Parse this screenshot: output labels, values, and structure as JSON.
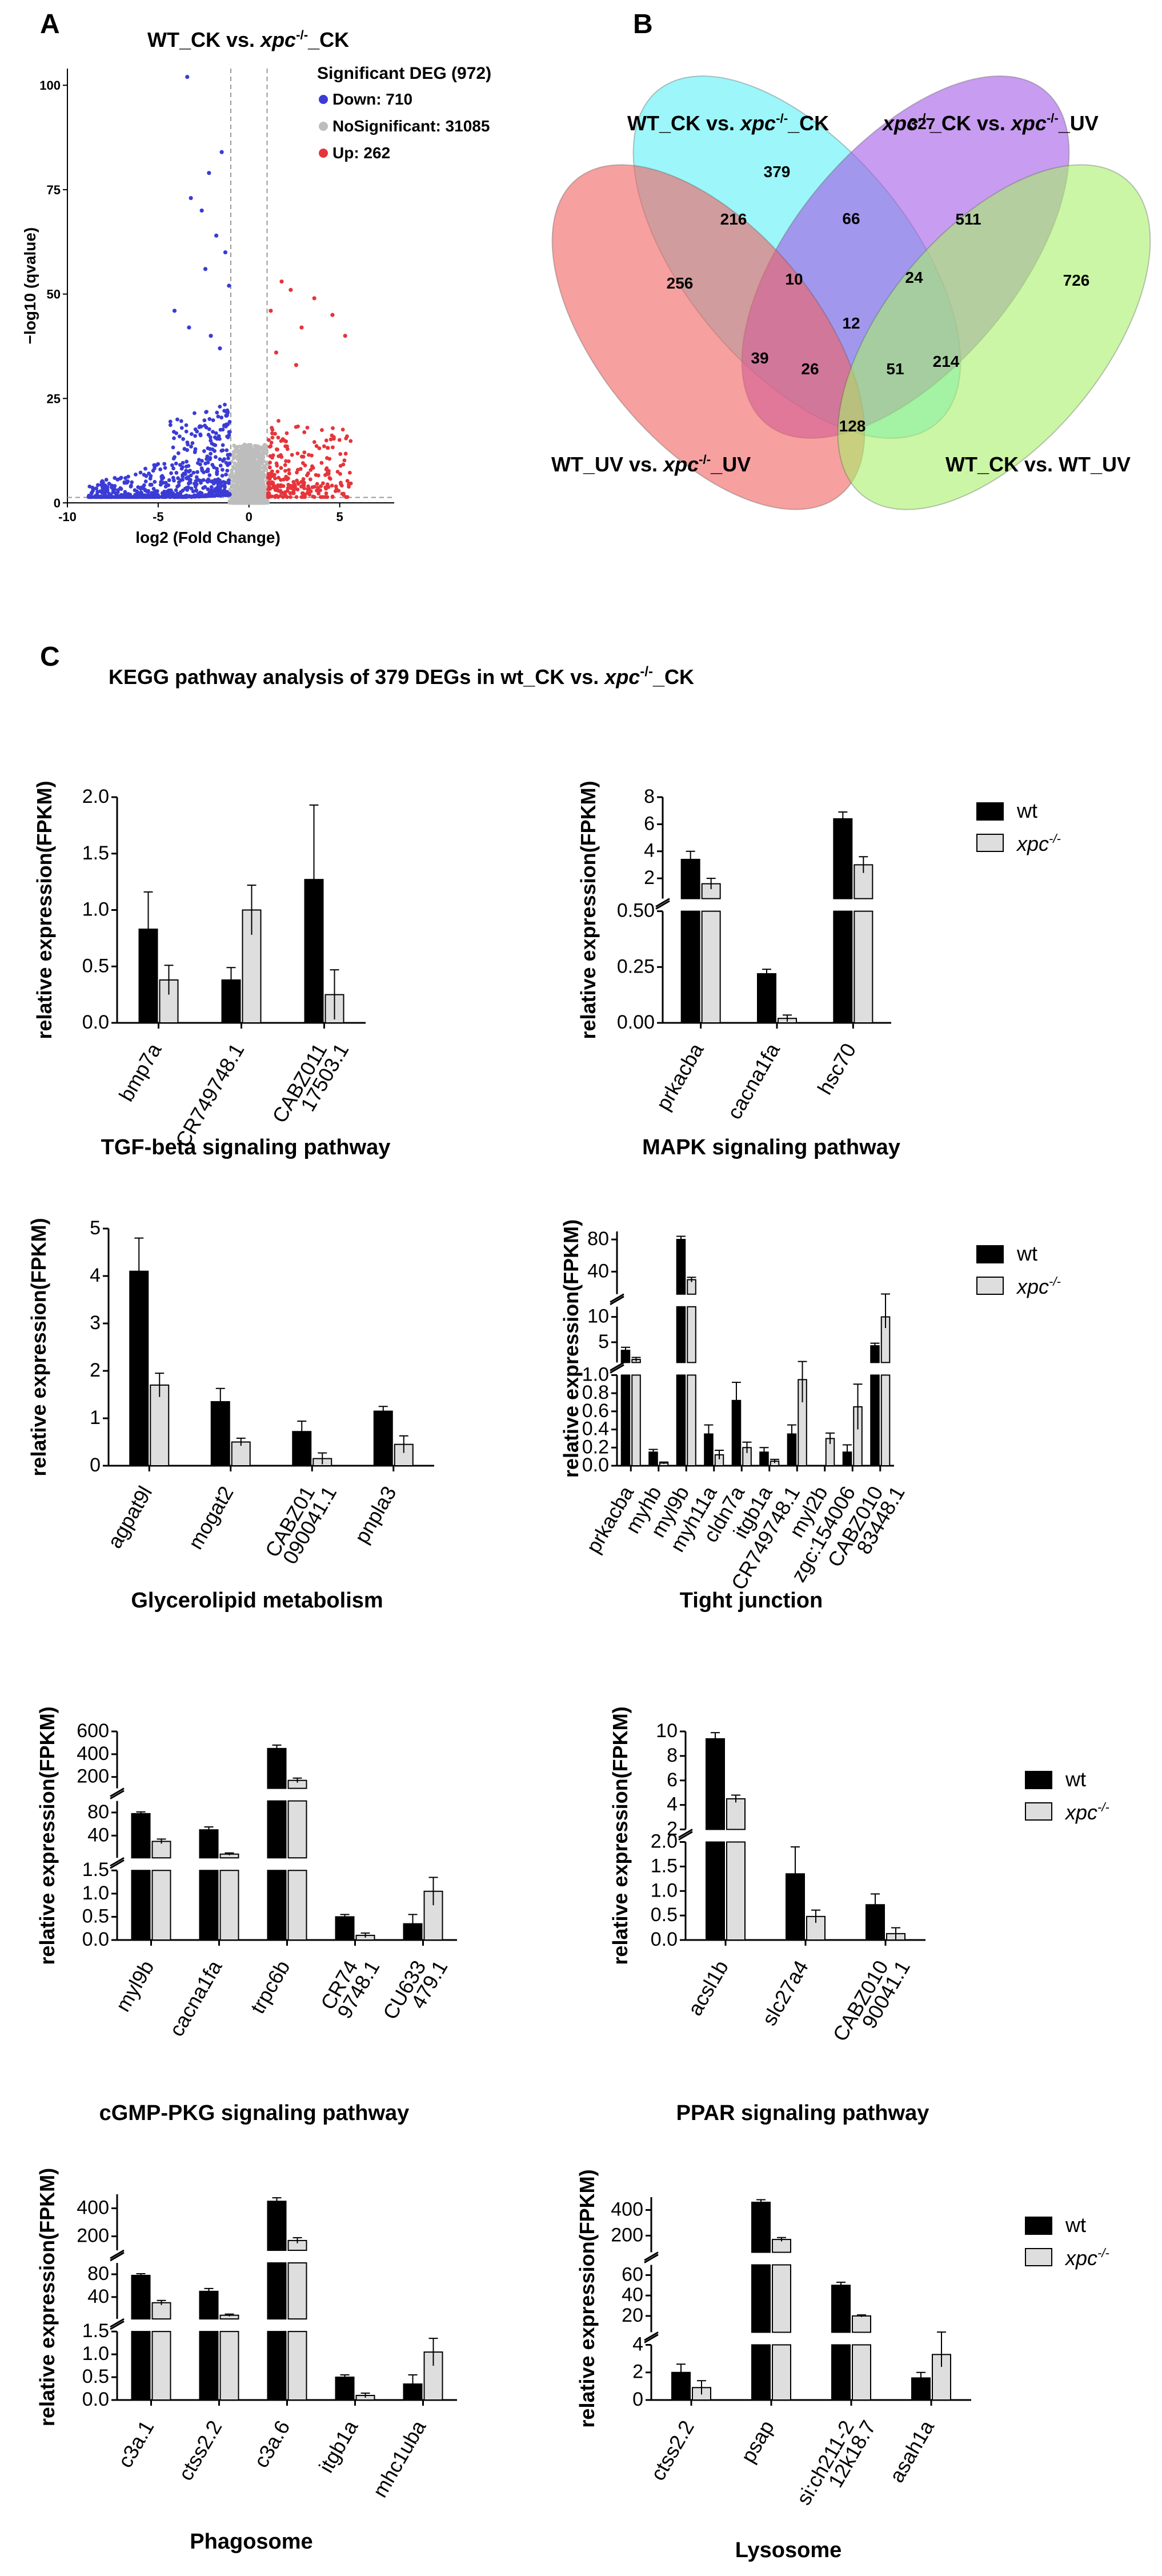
{
  "labels": {
    "a": "A",
    "b": "B",
    "c": "C"
  },
  "legend": {
    "wt": "wt",
    "xpc_base": "xpc",
    "xpc_sup": "-/-"
  },
  "title_c": {
    "pre": "KEGG pathway  analysis of 379 DEGs in wt_CK vs. ",
    "xpc": "xpc",
    "sup": "-/-",
    "post": "_CK"
  },
  "volcano_title": {
    "pre": "WT_CK vs. ",
    "xpc": "xpc",
    "sup": "-/-",
    "post": "_CK"
  },
  "venn_labels": {
    "s1": {
      "pre": "WT_CK vs. ",
      "xpc": "xpc",
      "sup": "-/-",
      "post": "_CK"
    },
    "s2": {
      "xpc1": "xpc",
      "sup1": "-/-",
      "mid": "_CK vs. ",
      "xpc2": "xpc",
      "sup2": "-/-",
      "post": "_UV"
    },
    "s3": {
      "pre": "WT_UV vs. ",
      "xpc": "xpc",
      "sup": "-/-",
      "post": "_UV"
    },
    "s4": {
      "text": "WT_CK vs. WT_UV"
    }
  },
  "colors": {
    "down": "#3b3bd6",
    "nosig": "#bdbdbd",
    "up": "#e6353a",
    "wt_bar": "#000000",
    "xpc_bar": "#dedede",
    "venn1": "#5cf0f5",
    "venn2": "#a35ae6",
    "venn3": "#f26161",
    "venn4": "#a8f06b"
  },
  "chart_data": [
    {
      "id": "volcano",
      "type": "scatter",
      "title": "WT_CK vs. xpc-/-_CK",
      "xlabel": "log2 (Fold Change)",
      "ylabel": "−log10 (qvalue)",
      "xlim": [
        -10,
        8
      ],
      "ylim": [
        0,
        104
      ],
      "x_ticks": [
        -10,
        -5,
        0,
        5
      ],
      "y_ticks": [
        0,
        25,
        50,
        75,
        100
      ],
      "thresholds": {
        "log2fc": [
          -1,
          1
        ],
        "neglog10q": 1.3
      },
      "legend": {
        "title": "Significant DEG (972)",
        "items": [
          {
            "label": "Down: 710",
            "key": "down"
          },
          {
            "label": "NoSignificant: 31085",
            "key": "nosig"
          },
          {
            "label": "Up: 262",
            "key": "up"
          }
        ]
      },
      "highlight_points": [
        [
          -3.4,
          102
        ],
        [
          -1.5,
          84
        ],
        [
          -2.2,
          79
        ],
        [
          -3.2,
          73
        ],
        [
          -2.6,
          70
        ],
        [
          -1.8,
          64
        ],
        [
          -1.3,
          60
        ],
        [
          -2.4,
          56
        ],
        [
          -1.1,
          52
        ],
        [
          1.8,
          53
        ],
        [
          2.3,
          51
        ],
        [
          3.6,
          49
        ],
        [
          4.6,
          45
        ],
        [
          1.2,
          46
        ],
        [
          2.9,
          42
        ],
        [
          5.3,
          40
        ],
        [
          -4.1,
          46
        ],
        [
          -3.3,
          42
        ],
        [
          -2.1,
          40
        ],
        [
          -1.6,
          37
        ],
        [
          1.5,
          36
        ],
        [
          2.6,
          33
        ]
      ]
    },
    {
      "id": "venn",
      "type": "venn",
      "sets": [
        "WT_CK vs. xpc-/-_CK",
        "xpc-/-_CK vs. xpc-/-_UV",
        "WT_UV vs. xpc-/-_UV",
        "WT_CK vs. WT_UV"
      ],
      "regions": [
        {
          "value": "379",
          "highlight": true
        },
        {
          "value": "327"
        },
        {
          "value": "256"
        },
        {
          "value": "726"
        },
        {
          "value": "216"
        },
        {
          "value": "66"
        },
        {
          "value": "511"
        },
        {
          "value": "10"
        },
        {
          "value": "24"
        },
        {
          "value": "12"
        },
        {
          "value": "39"
        },
        {
          "value": "26"
        },
        {
          "value": "51"
        },
        {
          "value": "214"
        },
        {
          "value": "128"
        }
      ]
    },
    {
      "id": "tgf",
      "type": "bar",
      "title": "TGF-beta signaling pathway",
      "ylabel": "relative expression(FPKM)",
      "categories": [
        [
          "bmp7a"
        ],
        [
          "CR749748.1"
        ],
        [
          "CABZ011",
          "17503.1"
        ]
      ],
      "series": [
        {
          "name": "wt",
          "values": [
            0.83,
            0.38,
            1.27
          ],
          "errors": [
            0.33,
            0.11,
            0.66
          ]
        },
        {
          "name": "xpc-/-",
          "values": [
            0.38,
            1.0,
            0.25
          ],
          "errors": [
            0.13,
            0.22,
            0.22
          ]
        }
      ],
      "segments": [
        {
          "min": 0,
          "max": 2.0,
          "ticks": [
            "0.0",
            "0.5",
            "1.0",
            "1.5",
            "2.0"
          ]
        }
      ]
    },
    {
      "id": "mapk",
      "type": "bar",
      "title": "MAPK signaling pathway",
      "ylabel": "relative expression(FPKM)",
      "categories": [
        [
          "prkacba"
        ],
        [
          "cacna1fa"
        ],
        [
          "hsc70"
        ]
      ],
      "series": [
        {
          "name": "wt",
          "values": [
            3.4,
            0.22,
            6.4
          ],
          "errors": [
            0.6,
            0.02,
            0.5
          ]
        },
        {
          "name": "xpc-/-",
          "values": [
            1.6,
            0.02,
            3.0
          ],
          "errors": [
            0.4,
            0.015,
            0.6
          ]
        }
      ],
      "segments": [
        {
          "min": 0,
          "max": 0.5,
          "ticks": [
            "0.00",
            "0.25",
            "0.50"
          ]
        },
        {
          "min": 0.5,
          "max": 8,
          "ticks": [
            "2",
            "4",
            "6",
            "8"
          ]
        }
      ]
    },
    {
      "id": "glycero",
      "type": "bar",
      "title": "Glycerolipid metabolism",
      "ylabel": "relative expression(FPKM)",
      "categories": [
        [
          "agpat9l"
        ],
        [
          "mogat2"
        ],
        [
          "CABZ01",
          "090041.1"
        ],
        [
          "pnpla3"
        ]
      ],
      "series": [
        {
          "name": "wt",
          "values": [
            4.1,
            1.35,
            0.72,
            1.15
          ],
          "errors": [
            0.7,
            0.28,
            0.22,
            0.1
          ]
        },
        {
          "name": "xpc-/-",
          "values": [
            1.7,
            0.5,
            0.15,
            0.45
          ],
          "errors": [
            0.25,
            0.08,
            0.12,
            0.18
          ]
        }
      ],
      "segments": [
        {
          "min": 0,
          "max": 5,
          "ticks": [
            "0",
            "1",
            "2",
            "3",
            "4",
            "5"
          ]
        }
      ]
    },
    {
      "id": "tight",
      "type": "bar",
      "title": "Tight junction",
      "ylabel": "relative expression(FPKM)",
      "categories": [
        [
          "prkacba"
        ],
        [
          "myhb"
        ],
        [
          "myl9b"
        ],
        [
          "myh11a"
        ],
        [
          "cldn7a"
        ],
        [
          "itgb1a"
        ],
        [
          "CR749748.1"
        ],
        [
          "myl2b"
        ],
        [
          "zgc:154006"
        ],
        [
          "CABZ010",
          "83448.1"
        ]
      ],
      "series": [
        {
          "name": "wt",
          "values": [
            3.4,
            0.15,
            80,
            0.35,
            0.72,
            0.15,
            0.35,
            0.0,
            0.15,
            4.3
          ],
          "errors": [
            0.6,
            0.03,
            4,
            0.1,
            0.2,
            0.05,
            0.1,
            0,
            0.08,
            0.5
          ]
        },
        {
          "name": "xpc-/-",
          "values": [
            1.6,
            0.03,
            30,
            0.12,
            0.2,
            0.05,
            0.95,
            0.3,
            0.65,
            10
          ],
          "errors": [
            0.4,
            0.01,
            3,
            0.05,
            0.06,
            0.02,
            0.25,
            0.06,
            0.25,
            2.2
          ]
        }
      ],
      "segments": [
        {
          "min": 0,
          "max": 1.0,
          "ticks": [
            "0.0",
            "0.2",
            "0.4",
            "0.6",
            "0.8",
            "1.0"
          ]
        },
        {
          "min": 1.0,
          "max": 12,
          "ticks": [
            "5",
            "10"
          ]
        },
        {
          "min": 12,
          "max": 90,
          "ticks": [
            "40",
            "80"
          ]
        }
      ]
    },
    {
      "id": "cgmp",
      "type": "bar",
      "title": "cGMP-PKG signaling pathway",
      "ylabel": "relative expression(FPKM)",
      "categories": [
        [
          "myl9b"
        ],
        [
          "cacna1fa"
        ],
        [
          "trpc6b"
        ],
        [
          "CR74",
          "9748.1"
        ],
        [
          "CU633",
          "479.1"
        ]
      ],
      "series": [
        {
          "name": "wt",
          "values": [
            78,
            50,
            450,
            0.5,
            0.35
          ],
          "errors": [
            3,
            5,
            30,
            0.05,
            0.2
          ]
        },
        {
          "name": "xpc-/-",
          "values": [
            30,
            8,
            170,
            0.1,
            1.05
          ],
          "errors": [
            4,
            2,
            20,
            0.05,
            0.3
          ]
        }
      ],
      "segments": [
        {
          "min": 0,
          "max": 1.5,
          "ticks": [
            "0.0",
            "0.5",
            "1.0",
            "1.5"
          ]
        },
        {
          "min": 1.5,
          "max": 100,
          "ticks": [
            "40",
            "80"
          ]
        },
        {
          "min": 100,
          "max": 600,
          "ticks": [
            "200",
            "400",
            "600"
          ]
        }
      ]
    },
    {
      "id": "ppar",
      "type": "bar",
      "title": "PPAR signaling pathway",
      "ylabel": "relative expression(FPKM)",
      "categories": [
        [
          "acsl1b"
        ],
        [
          "slc27a4"
        ],
        [
          "CABZ010",
          "90041.1"
        ]
      ],
      "series": [
        {
          "name": "wt",
          "values": [
            9.4,
            1.35,
            0.72
          ],
          "errors": [
            0.5,
            0.55,
            0.22
          ]
        },
        {
          "name": "xpc-/-",
          "values": [
            4.5,
            0.48,
            0.13
          ],
          "errors": [
            0.3,
            0.13,
            0.12
          ]
        }
      ],
      "segments": [
        {
          "min": 0,
          "max": 2.0,
          "ticks": [
            "0.0",
            "0.5",
            "1.0",
            "1.5",
            "2.0"
          ]
        },
        {
          "min": 2.0,
          "max": 10,
          "ticks": [
            "2",
            "4",
            "6",
            "8",
            "10"
          ]
        }
      ]
    },
    {
      "id": "phago",
      "type": "bar",
      "title": "Phagosome",
      "ylabel": "relative expression(FPKM)",
      "categories": [
        [
          "c3a.1"
        ],
        [
          "ctss2.2"
        ],
        [
          "c3a.6"
        ],
        [
          "itgb1a"
        ],
        [
          "mhc1uba"
        ]
      ],
      "series": [
        {
          "name": "wt",
          "values": [
            78,
            50,
            450,
            0.5,
            0.35
          ],
          "errors": [
            3,
            5,
            25,
            0.05,
            0.2
          ]
        },
        {
          "name": "xpc-/-",
          "values": [
            30,
            8,
            170,
            0.1,
            1.05
          ],
          "errors": [
            4,
            2,
            20,
            0.05,
            0.3
          ]
        }
      ],
      "segments": [
        {
          "min": 0,
          "max": 1.5,
          "ticks": [
            "0.0",
            "0.5",
            "1.0",
            "1.5"
          ]
        },
        {
          "min": 1.5,
          "max": 100,
          "ticks": [
            "40",
            "80"
          ]
        },
        {
          "min": 100,
          "max": 500,
          "ticks": [
            "200",
            "400"
          ]
        }
      ]
    },
    {
      "id": "lyso",
      "type": "bar",
      "title": "Lysosome",
      "ylabel": "relative expression(FPKM)",
      "categories": [
        [
          "ctss2.2"
        ],
        [
          "psap"
        ],
        [
          "si:ch211-2",
          "12k18.7"
        ],
        [
          "asah1a"
        ]
      ],
      "series": [
        {
          "name": "wt",
          "values": [
            2.0,
            460,
            50,
            1.6
          ],
          "errors": [
            0.6,
            20,
            3,
            0.4
          ]
        },
        {
          "name": "xpc-/-",
          "values": [
            0.9,
            170,
            20,
            3.3
          ],
          "errors": [
            0.5,
            15,
            1,
            0.9
          ]
        }
      ],
      "segments": [
        {
          "min": 0,
          "max": 4,
          "ticks": [
            "0",
            "2",
            "4"
          ]
        },
        {
          "min": 4,
          "max": 70,
          "ticks": [
            "20",
            "40",
            "60"
          ]
        },
        {
          "min": 70,
          "max": 500,
          "ticks": [
            "200",
            "400"
          ]
        }
      ]
    }
  ]
}
